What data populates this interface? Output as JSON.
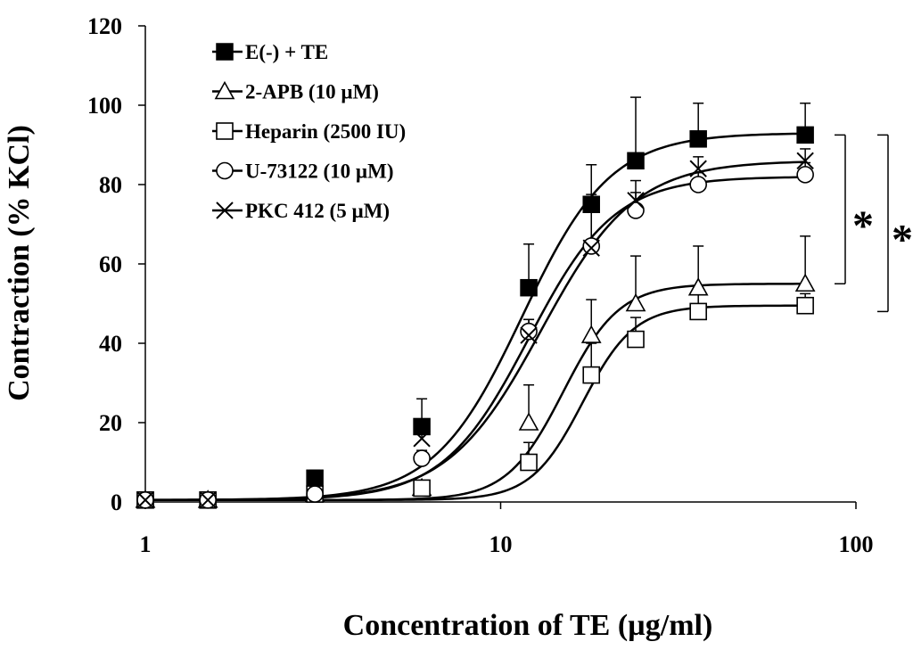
{
  "chart_data": {
    "type": "line",
    "xscale": "log",
    "xlabel": "Concentration of TE (µg/ml)",
    "ylabel": "Contraction (% KCl)",
    "xlim": [
      1,
      100
    ],
    "ylim": [
      0,
      120
    ],
    "x_ticks": [
      1,
      10,
      100
    ],
    "x_tick_labels": [
      "1",
      "10",
      "100"
    ],
    "y_ticks": [
      0,
      20,
      40,
      60,
      80,
      100,
      120
    ],
    "y_tick_labels": [
      "0",
      "20",
      "40",
      "60",
      "80",
      "100",
      "120"
    ],
    "grid": false,
    "legend_position": "top-left",
    "x": [
      1,
      1.5,
      3,
      6,
      12,
      18,
      24,
      36,
      72
    ],
    "series": [
      {
        "name": "E(-) + TE",
        "marker": "filled-square",
        "values": [
          0.5,
          0.5,
          6,
          19,
          54,
          75,
          86,
          91.5,
          92.5
        ],
        "errors": [
          0,
          0,
          2,
          7,
          11,
          10,
          16,
          9,
          8
        ],
        "fit": {
          "bottom": 0.5,
          "top": 93,
          "ec50": 11.5,
          "hill": 3.5
        }
      },
      {
        "name": "2-APB (10 µM)",
        "marker": "open-triangle",
        "values": [
          0.5,
          0.5,
          2,
          3.5,
          20,
          42,
          50,
          54,
          55
        ],
        "errors": [
          0,
          0,
          1,
          1.5,
          9.5,
          9,
          12,
          10.5,
          12
        ],
        "fit": {
          "bottom": 0.5,
          "top": 55,
          "ec50": 15,
          "hill": 5.5
        }
      },
      {
        "name": "Heparin (2500 IU)",
        "marker": "open-square",
        "values": [
          0.5,
          0.5,
          2,
          3.5,
          10,
          32,
          41,
          48,
          49.5
        ],
        "errors": [
          0,
          0,
          1,
          1,
          5,
          8,
          5.5,
          4.5,
          3
        ],
        "fit": {
          "bottom": 0.5,
          "top": 49.5,
          "ec50": 17,
          "hill": 6
        }
      },
      {
        "name": "U-73122 (10 µM)",
        "marker": "open-circle",
        "values": [
          0.5,
          0.5,
          2,
          11,
          43,
          64.5,
          73.5,
          80,
          82.5
        ],
        "errors": [
          0,
          0,
          1,
          2,
          3,
          13,
          4.5,
          3,
          3
        ],
        "fit": {
          "bottom": 0.5,
          "top": 82,
          "ec50": 12,
          "hill": 3.6
        }
      },
      {
        "name": "PKC 412 (5 µM)",
        "marker": "cross",
        "values": [
          0.5,
          0.5,
          6,
          16,
          42,
          64,
          76,
          84,
          86
        ],
        "errors": [
          0,
          0,
          2,
          3,
          4,
          12,
          5,
          3,
          3
        ],
        "fit": {
          "bottom": 0.5,
          "top": 86,
          "ec50": 13,
          "hill": 3.3
        }
      }
    ],
    "annotations": [
      {
        "text": "*",
        "from_y": 92.5,
        "to_y": 55,
        "level": 1
      },
      {
        "text": "*",
        "from_y": 92.5,
        "to_y": 48,
        "level": 2
      }
    ]
  }
}
